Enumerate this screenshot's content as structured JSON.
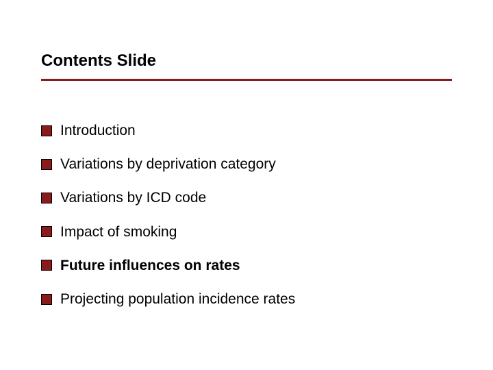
{
  "slide": {
    "title": "Contents Slide",
    "title_fontsize": 24,
    "title_color": "#000000",
    "underline_color": "#8b1a1a",
    "underline_width": 600,
    "underline_height": 3,
    "background_color": "#ffffff",
    "bullets": [
      {
        "text": "Introduction",
        "bold": false
      },
      {
        "text": "Variations by deprivation category",
        "bold": false
      },
      {
        "text": "Variations by ICD code",
        "bold": false
      },
      {
        "text": "Impact of smoking",
        "bold": false
      },
      {
        "text": "Future influences on rates",
        "bold": true
      },
      {
        "text": "Projecting population incidence rates",
        "bold": false
      }
    ],
    "bullet_marker": {
      "color": "#8b1a1a",
      "border_color": "#000000",
      "size": 16
    },
    "bullet_fontsize": 21,
    "bullet_text_color": "#000000",
    "bullet_spacing": 24
  }
}
